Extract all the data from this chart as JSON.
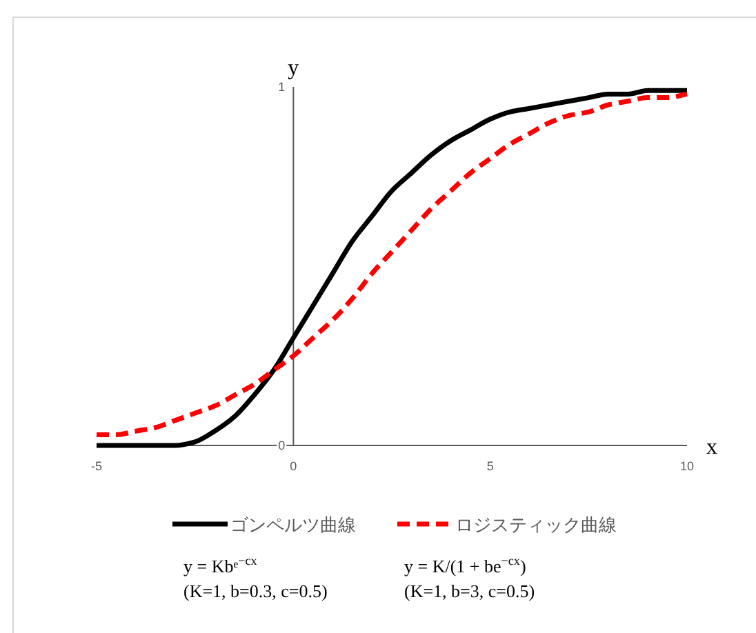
{
  "chart_data": {
    "type": "line",
    "xlabel": "x",
    "ylabel": "y",
    "x": [
      -5,
      -4.5,
      -4,
      -3.5,
      -3,
      -2.5,
      -2,
      -1.5,
      -1,
      -0.5,
      0,
      0.5,
      1,
      1.5,
      2,
      2.5,
      3,
      3.5,
      4,
      4.5,
      5,
      5.5,
      6,
      6.5,
      7,
      7.5,
      8,
      8.5,
      9,
      9.5,
      10
    ],
    "series": [
      {
        "name": "ゴンペルツ曲線",
        "color": "#000000",
        "line_style": "solid",
        "values": [
          0,
          0,
          0,
          0,
          0,
          0.01,
          0.04,
          0.08,
          0.14,
          0.21,
          0.3,
          0.39,
          0.48,
          0.57,
          0.64,
          0.71,
          0.76,
          0.81,
          0.85,
          0.88,
          0.91,
          0.93,
          0.94,
          0.95,
          0.96,
          0.97,
          0.98,
          0.98,
          0.99,
          0.99,
          0.99
        ]
      },
      {
        "name": "ロジスティック曲線",
        "color": "#ff0000",
        "line_style": "dashed",
        "values": [
          0.03,
          0.03,
          0.04,
          0.05,
          0.07,
          0.09,
          0.11,
          0.14,
          0.17,
          0.21,
          0.25,
          0.3,
          0.35,
          0.41,
          0.48,
          0.54,
          0.6,
          0.66,
          0.71,
          0.76,
          0.8,
          0.84,
          0.87,
          0.9,
          0.92,
          0.93,
          0.95,
          0.96,
          0.97,
          0.97,
          0.98
        ]
      }
    ],
    "xlim": [
      -5,
      10
    ],
    "xticks": [
      -5,
      0,
      5,
      10
    ],
    "ylim": [
      0,
      1
    ],
    "yticks": [
      0,
      1
    ],
    "legend": "bottom",
    "annotations": [
      "y = Kbᵉ$^{−cx}$",
      "(K=1, b=0.3, c=0.5)",
      "y = K/(1 + be$^{−cx}$)",
      "(K=1, b=3, c=0.5)"
    ]
  }
}
